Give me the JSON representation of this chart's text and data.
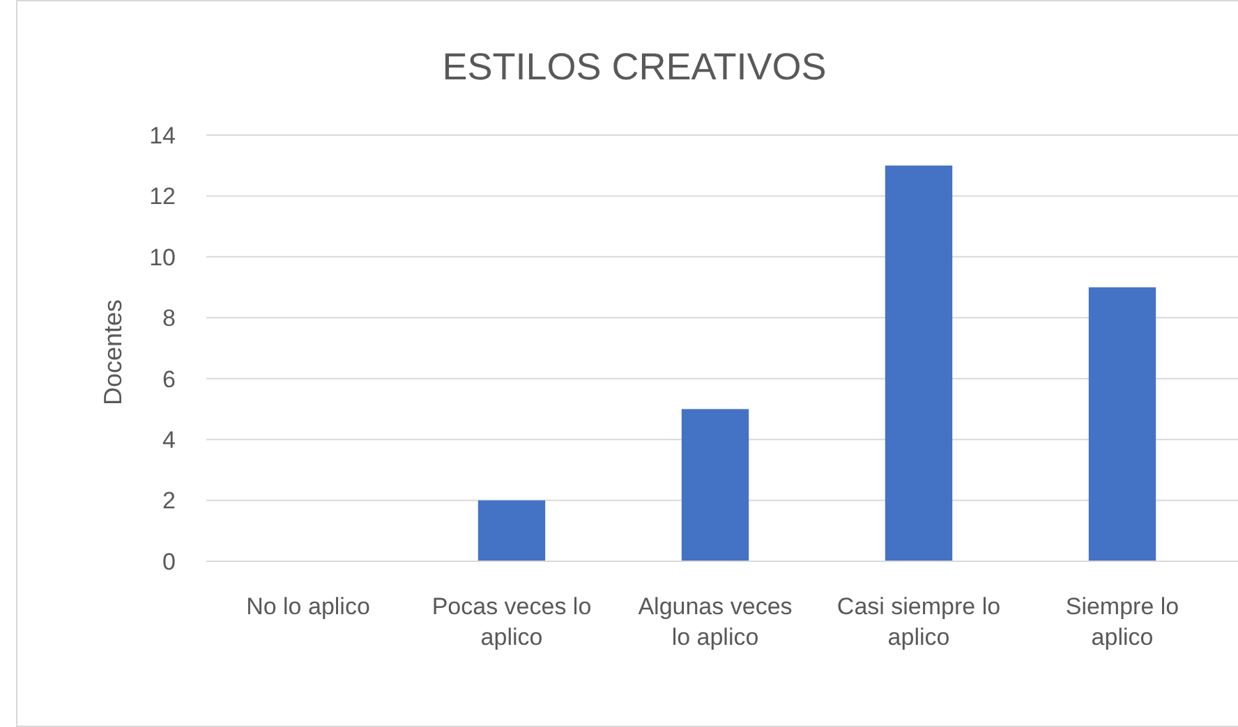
{
  "chart_data": {
    "type": "bar",
    "title": "ESTILOS CREATIVOS",
    "ylabel": "Docentes",
    "categories": [
      "No lo aplico",
      "Pocas veces lo aplico",
      "Algunas veces lo aplico",
      "Casi siempre lo aplico",
      "Siempre lo aplico"
    ],
    "values": [
      0,
      2,
      5,
      13,
      9
    ],
    "color": "#4472c4",
    "ylim": [
      0,
      14
    ],
    "yticks": [
      0,
      2,
      4,
      6,
      8,
      10,
      12,
      14
    ],
    "grid": "y"
  }
}
